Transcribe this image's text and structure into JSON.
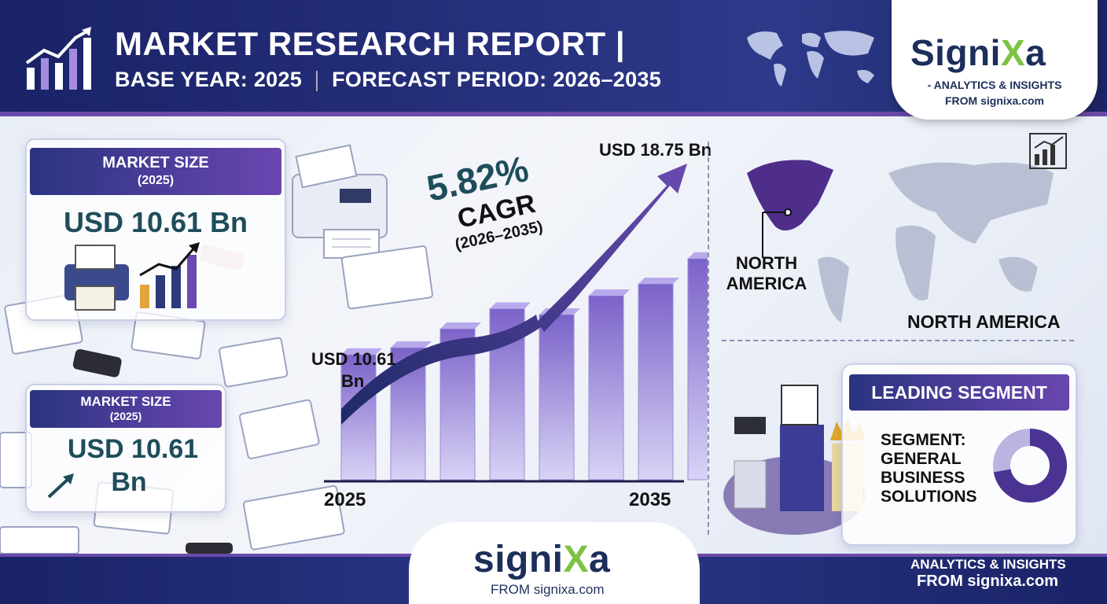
{
  "header": {
    "title": "MARKET RESEARCH REPORT |",
    "base_year": "BASE YEAR: 2025",
    "forecast_period": "FORECAST PERIOD: 2026–2035"
  },
  "brand": {
    "name_prefix": "Signi",
    "name_x": "X",
    "name_suffix": "a",
    "tagline_1": "- ANALYTICS & INSIGHTS",
    "tagline_2": "FROM signixa.com",
    "footer_prefix": "signi",
    "footer_x": "X",
    "footer_suffix": "a",
    "footer_from": "FROM signixa.com",
    "footer_right_1": "ANALYTICS & INSIGHTS",
    "footer_right_2": "FROM signixa.com"
  },
  "market_card_top": {
    "title": "MARKET SIZE",
    "year": "(2025)",
    "value": "USD 10.61 Bn"
  },
  "market_card_bottom": {
    "title": "MARKET SIZE",
    "year": "(2025)",
    "value_line1": "USD 10.61",
    "value_line2": "Bn"
  },
  "cagr": {
    "value": "5.82%",
    "label": "CAGR",
    "period": "(2026–2035)"
  },
  "region": {
    "map_label": "NORTH\nAMERICA",
    "map_label_line1": "NORTH",
    "map_label_line2": "AMERICA",
    "caption": "NORTH AMERICA"
  },
  "segment": {
    "title": "LEADING SEGMENT",
    "line1": "SEGMENT:",
    "line2": "GENERAL",
    "line3": "BUSINESS",
    "line4": "SOLUTIONS",
    "share": 0.72
  },
  "chart_data": {
    "type": "bar",
    "categories": [
      "2025",
      "",
      "",
      "",
      "",
      "",
      "",
      "2035"
    ],
    "x_tick_labels": [
      "2025",
      "2035"
    ],
    "values": [
      10.61,
      11.2,
      12.8,
      14.5,
      14.0,
      15.6,
      16.6,
      18.75
    ],
    "start_label_line1": "USD 10.61",
    "start_label_line2": "Bn",
    "end_label": "USD 18.75 Bn",
    "ylim": [
      0,
      20
    ],
    "colors": {
      "bar_top": "#7b62c9",
      "bar_bottom": "#d9d3f5",
      "arrow": "#3a3c9a"
    }
  }
}
